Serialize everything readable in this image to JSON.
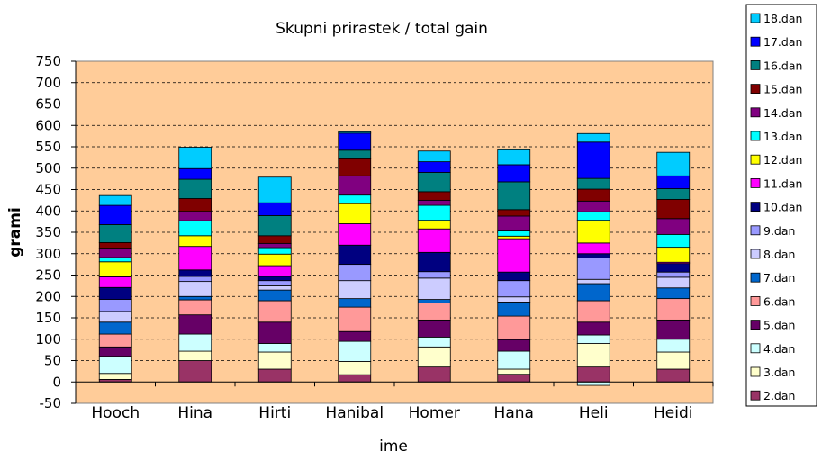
{
  "chart_data": {
    "type": "bar",
    "stacked": true,
    "title": "Skupni prirastek / total gain",
    "xlabel": "ime",
    "ylabel": "grami",
    "ylim": [
      -50,
      750
    ],
    "ytick_step": 50,
    "grid": "horizontal-dashed",
    "plot_background": "#FFCC99",
    "legend_position": "right",
    "categories": [
      "Hooch",
      "Hina",
      "Hirti",
      "Hanibal",
      "Homer",
      "Hana",
      "Heli",
      "Heidi"
    ],
    "series": [
      {
        "name": "2.dan",
        "color": "#993366",
        "values": [
          6,
          50,
          30,
          17,
          35,
          18,
          35,
          30
        ]
      },
      {
        "name": "3.dan",
        "color": "#FFFFCC",
        "values": [
          14,
          22,
          40,
          31,
          47,
          12,
          55,
          40
        ]
      },
      {
        "name": "4.dan",
        "color": "#CCFFFF",
        "values": [
          40,
          40,
          20,
          47,
          23,
          42,
          20,
          30
        ]
      },
      {
        "name": "5.dan",
        "color": "#660066",
        "values": [
          22,
          45,
          50,
          23,
          40,
          27,
          30,
          45
        ]
      },
      {
        "name": "6.dan",
        "color": "#FF9999",
        "values": [
          30,
          35,
          50,
          57,
          40,
          55,
          50,
          50
        ]
      },
      {
        "name": "7.dan",
        "color": "#0066CC",
        "values": [
          28,
          8,
          25,
          20,
          8,
          33,
          40,
          25
        ]
      },
      {
        "name": "8.dan",
        "color": "#CCCCFF",
        "values": [
          25,
          35,
          10,
          42,
          50,
          12,
          10,
          25
        ]
      },
      {
        "name": "9.dan",
        "color": "#9999FF",
        "values": [
          28,
          12,
          12,
          38,
          15,
          38,
          50,
          12
        ]
      },
      {
        "name": "10.dan",
        "color": "#000080",
        "values": [
          28,
          15,
          10,
          45,
          45,
          20,
          10,
          20
        ]
      },
      {
        "name": "11.dan",
        "color": "#FF00FF",
        "values": [
          25,
          55,
          25,
          50,
          55,
          78,
          25,
          3
        ]
      },
      {
        "name": "12.dan",
        "color": "#FFFF00",
        "values": [
          35,
          25,
          27,
          47,
          20,
          6,
          53,
          35
        ]
      },
      {
        "name": "13.dan",
        "color": "#00FFFF",
        "values": [
          10,
          35,
          15,
          20,
          35,
          12,
          20,
          30
        ]
      },
      {
        "name": "14.dan",
        "color": "#800080",
        "values": [
          22,
          22,
          10,
          45,
          12,
          35,
          25,
          37
        ]
      },
      {
        "name": "15.dan",
        "color": "#800000",
        "values": [
          13,
          30,
          18,
          40,
          20,
          15,
          28,
          45
        ]
      },
      {
        "name": "16.dan",
        "color": "#008080",
        "values": [
          42,
          45,
          47,
          20,
          45,
          65,
          25,
          25
        ]
      },
      {
        "name": "17.dan",
        "color": "#0000FF",
        "values": [
          45,
          25,
          30,
          40,
          25,
          40,
          85,
          30
        ]
      },
      {
        "name": "18.dan",
        "color": "#00CCFF",
        "values": [
          23,
          50,
          60,
          3,
          25,
          35,
          20,
          55
        ]
      }
    ],
    "extra_negative": {
      "category": "Heli",
      "color": "#CCFFFF",
      "value": -8
    }
  }
}
